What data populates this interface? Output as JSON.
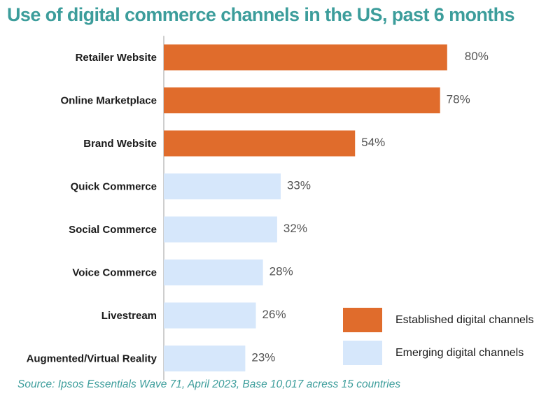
{
  "title": "Use of digital commerce channels in the US, past 6 months",
  "source": "Source: Ipsos Essentials Wave 71, April 2023, Base 10,017 acress 15 countries",
  "colors": {
    "established": "#e06c2c",
    "emerging": "#d6e7fb",
    "title": "#3c9d9b"
  },
  "chart_data": {
    "type": "bar",
    "orientation": "horizontal",
    "categories": [
      "Retailer Website",
      "Online Marketplace",
      "Brand Website",
      "Quick Commerce",
      "Social Commerce",
      "Voice Commerce",
      "Livestream",
      "Augmented/Virtual Reality"
    ],
    "values": [
      80,
      78,
      54,
      33,
      32,
      28,
      26,
      23
    ],
    "value_labels": [
      "80%",
      "78%",
      "54%",
      "33%",
      "32%",
      "28%",
      "26%",
      "23%"
    ],
    "groups": [
      "established",
      "established",
      "established",
      "emerging",
      "emerging",
      "emerging",
      "emerging",
      "emerging"
    ],
    "legend": [
      {
        "key": "established",
        "label": "Established digital channels"
      },
      {
        "key": "emerging",
        "label": "Emerging digital channels"
      }
    ],
    "legend_position": "bottom-right",
    "xlim": [
      0,
      100
    ],
    "grid": false
  }
}
